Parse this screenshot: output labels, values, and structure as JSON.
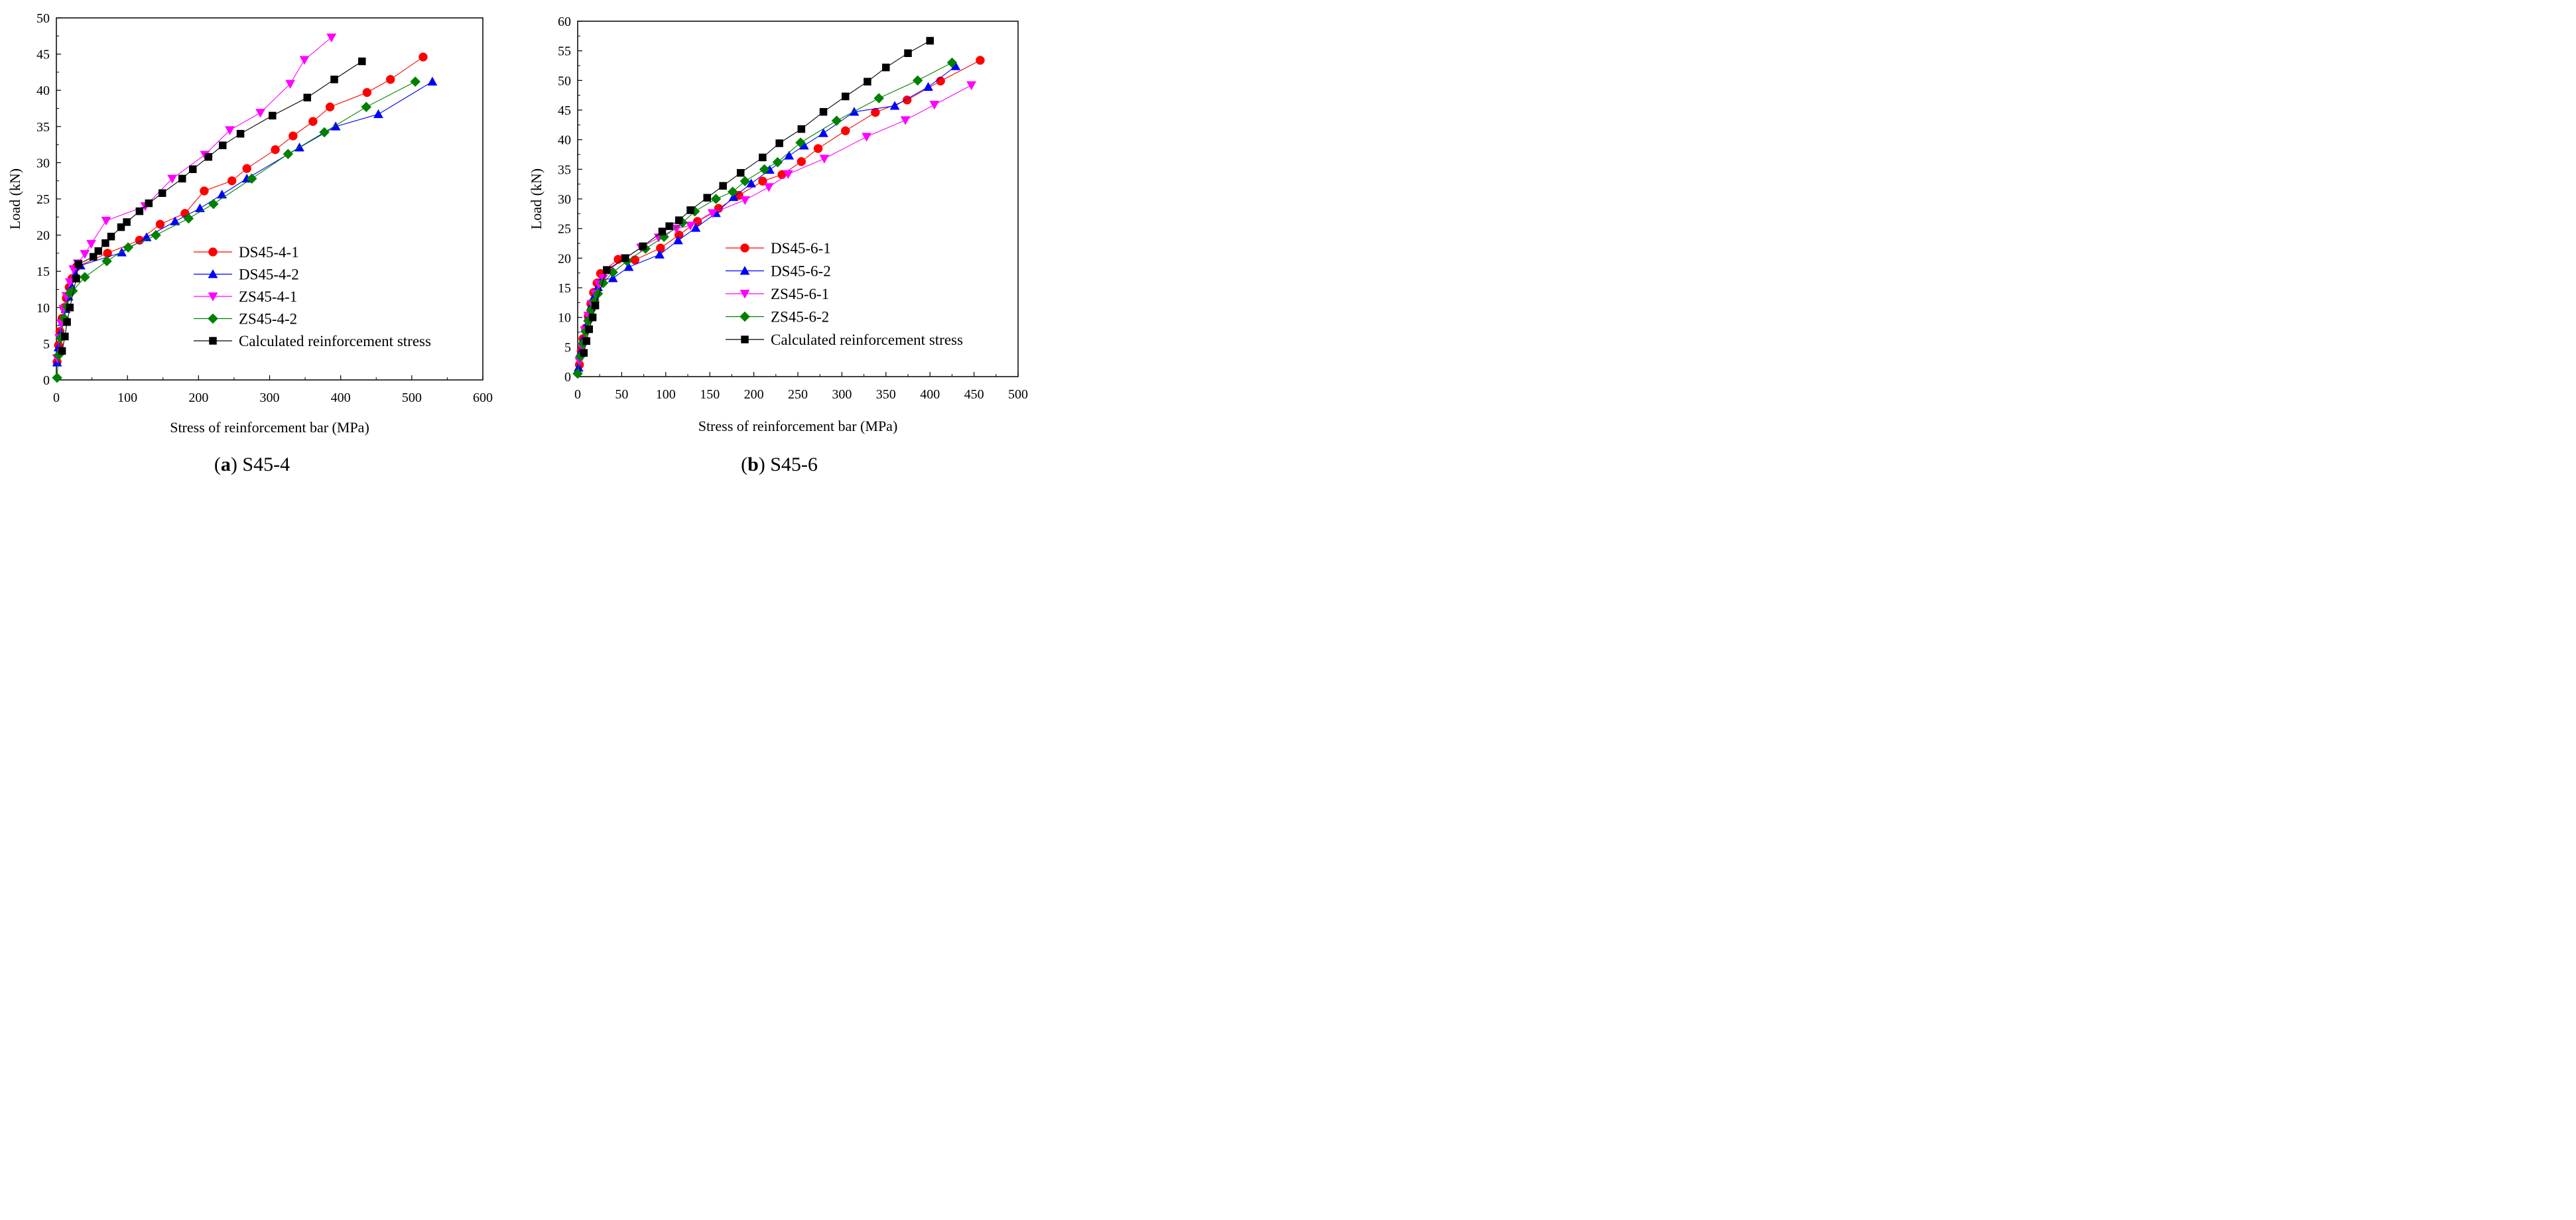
{
  "chart_data": [
    {
      "type": "line",
      "caption_letter": "a",
      "caption_text": "S45-4",
      "xlabel": "Stress of reinforcement bar (MPa)",
      "ylabel": "Load (kN)",
      "xlim": [
        0,
        600
      ],
      "ylim": [
        0,
        50
      ],
      "xticks": [
        0,
        100,
        200,
        300,
        400,
        500,
        600
      ],
      "yticks": [
        0,
        5,
        10,
        15,
        20,
        25,
        30,
        35,
        40,
        45,
        50
      ],
      "grid": false,
      "legend_position": "bottom-right",
      "series": [
        {
          "name": "DS45-4-1",
          "color": "#ff0000",
          "marker": "circle",
          "x": [
            1,
            3,
            5,
            8,
            11,
            14,
            18,
            22,
            28,
            72,
            117,
            146,
            181,
            208,
            247,
            268,
            308,
            333,
            361,
            385,
            437,
            470,
            516
          ],
          "y": [
            2.5,
            4.8,
            6.7,
            8.5,
            10,
            11.3,
            12.8,
            14,
            15.6,
            17.5,
            19.3,
            21.5,
            23,
            26.1,
            27.5,
            29.2,
            31.8,
            33.7,
            35.7,
            37.7,
            39.7,
            41.5,
            44.6
          ]
        },
        {
          "name": "DS45-4-2",
          "color": "#0000ff",
          "marker": "triangle-up",
          "x": [
            1,
            3,
            6,
            9,
            13,
            17,
            21,
            27,
            34,
            92,
            127,
            167,
            202,
            233,
            268,
            342,
            393,
            453,
            529
          ],
          "y": [
            2.4,
            4.5,
            6.5,
            8,
            9.8,
            11.5,
            13,
            14.6,
            15.8,
            17.6,
            19.7,
            21.9,
            23.7,
            25.6,
            27.8,
            32.1,
            35,
            36.7,
            41.2
          ]
        },
        {
          "name": "ZS45-4-1",
          "color": "#ff00ff",
          "marker": "triangle-down",
          "x": [
            1,
            4,
            7,
            10,
            14,
            19,
            24,
            30,
            40,
            49,
            70,
            125,
            163,
            209,
            244,
            287,
            329,
            349,
            387
          ],
          "y": [
            3,
            5.8,
            7.8,
            9.8,
            11.6,
            13.5,
            15.3,
            16.1,
            17.4,
            18.8,
            22,
            24,
            27.8,
            31.1,
            34.5,
            36.9,
            40.9,
            44.2,
            47.3
          ]
        },
        {
          "name": "ZS45-4-2",
          "color": "#008000",
          "marker": "diamond",
          "x": [
            1,
            3,
            6,
            11,
            15,
            19,
            23,
            40,
            71,
            101,
            140,
            186,
            221,
            275,
            326,
            377,
            436,
            505
          ],
          "y": [
            0.3,
            3.4,
            5.8,
            8.5,
            10.1,
            12,
            12.3,
            14.2,
            16.4,
            18.3,
            20,
            22.3,
            24.3,
            27.8,
            31.2,
            34.2,
            37.7,
            41.2
          ]
        },
        {
          "name": "Calculated reinforcement stress",
          "color": "#000000",
          "marker": "square",
          "x": [
            8,
            12,
            15,
            19,
            28,
            31,
            52,
            59,
            69,
            77,
            91,
            99,
            117,
            130,
            149,
            177,
            192,
            214,
            234,
            259,
            304,
            353,
            391,
            430
          ],
          "y": [
            4,
            6,
            8,
            10,
            14,
            16,
            17,
            17.8,
            18.9,
            19.8,
            21.1,
            21.8,
            23.3,
            24.4,
            25.8,
            27.8,
            29.1,
            30.8,
            32.4,
            34,
            36.5,
            39,
            41.5,
            44
          ]
        }
      ]
    },
    {
      "type": "line",
      "caption_letter": "b",
      "caption_text": "S45-6",
      "xlabel": "Stress of reinforcement bar (MPa)",
      "ylabel": "Load (kN)",
      "xlim": [
        0,
        500
      ],
      "ylim": [
        0,
        60
      ],
      "xticks": [
        0,
        50,
        100,
        150,
        200,
        250,
        300,
        350,
        400,
        450,
        500
      ],
      "yticks": [
        0,
        5,
        10,
        15,
        20,
        25,
        30,
        35,
        40,
        45,
        50,
        55,
        60
      ],
      "grid": false,
      "legend_position": "middle",
      "series": [
        {
          "name": "DS45-6-1",
          "color": "#ff0000",
          "marker": "circle",
          "x": [
            2,
            4,
            6,
            9,
            12,
            15,
            18,
            22,
            26,
            46,
            65,
            94,
            115,
            136,
            160,
            183,
            210,
            232,
            254,
            273,
            304,
            338,
            374,
            412,
            457
          ],
          "y": [
            2,
            4.3,
            6.4,
            8.2,
            10.2,
            12.3,
            14.2,
            15.8,
            17.4,
            19.8,
            19.7,
            21.7,
            23.9,
            26.2,
            28.4,
            30.6,
            33,
            34.1,
            36.3,
            38.5,
            41.5,
            44.6,
            46.7,
            49.9,
            53.4
          ]
        },
        {
          "name": "DS45-6-2",
          "color": "#0000ff",
          "marker": "triangle-up",
          "x": [
            1,
            3,
            6,
            9,
            13,
            16,
            19,
            23,
            27,
            40,
            58,
            93,
            114,
            134,
            157,
            177,
            197,
            218,
            240,
            257,
            279,
            314,
            360,
            398,
            429
          ],
          "y": [
            1.5,
            4,
            6.2,
            8.3,
            10.3,
            12.1,
            13.6,
            15.1,
            16.3,
            16.6,
            18.5,
            20.6,
            23,
            25.1,
            27.6,
            30.3,
            32.6,
            34.9,
            37.3,
            39,
            41.1,
            44.7,
            45.7,
            48.9,
            52.4
          ]
        },
        {
          "name": "ZS45-6-1",
          "color": "#ff00ff",
          "marker": "triangle-down",
          "x": [
            2,
            5,
            8,
            12,
            16,
            20,
            24,
            29,
            35,
            54,
            72,
            92,
            112,
            128,
            153,
            190,
            217,
            239,
            280,
            328,
            372,
            405,
            447
          ],
          "y": [
            2.6,
            5,
            7.8,
            10.3,
            12.3,
            14,
            15.6,
            16.6,
            18,
            20,
            21.8,
            23.5,
            25,
            25.5,
            27.6,
            29.8,
            32,
            34.2,
            36.8,
            40.5,
            43.3,
            45.9,
            49.2
          ]
        },
        {
          "name": "ZS45-6-2",
          "color": "#008000",
          "marker": "diamond",
          "x": [
            0,
            3,
            6,
            9,
            12,
            15,
            19,
            23,
            29,
            40,
            56,
            77,
            98,
            119,
            133,
            157,
            176,
            190,
            212,
            227,
            253,
            294,
            342,
            386,
            425
          ],
          "y": [
            0.5,
            3.4,
            5.6,
            7.6,
            9.4,
            11.2,
            12.7,
            14,
            15.8,
            17.6,
            19.5,
            21.6,
            23.6,
            26,
            27.9,
            30,
            31.2,
            33,
            35,
            36.2,
            39.5,
            43.2,
            47,
            50,
            53
          ]
        },
        {
          "name": "Calculated reinforcement stress",
          "color": "#000000",
          "marker": "square",
          "x": [
            7,
            10,
            13,
            17,
            20,
            33,
            54,
            74,
            96,
            104,
            115,
            128,
            147,
            165,
            185,
            210,
            229,
            254,
            279,
            304,
            329,
            350,
            375,
            400
          ],
          "y": [
            4,
            6,
            8,
            10,
            12,
            18,
            20,
            22,
            24.5,
            25.4,
            26.4,
            28.1,
            30.2,
            32.2,
            34.4,
            37,
            39.4,
            41.8,
            44.7,
            47.3,
            49.8,
            52.2,
            54.6,
            56.7
          ]
        }
      ]
    }
  ]
}
